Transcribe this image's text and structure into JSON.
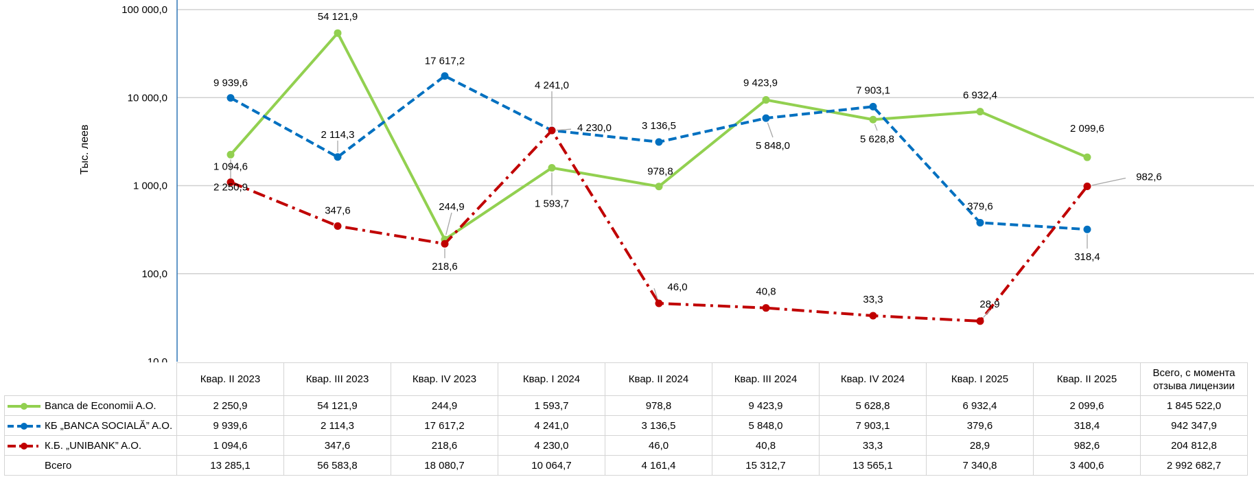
{
  "chart_data": {
    "type": "line",
    "yscale": "log",
    "ylabel": "Тыс. леев",
    "ylim": [
      10,
      100000
    ],
    "yticks": [
      10,
      100,
      1000,
      10000,
      100000
    ],
    "ytick_labels": [
      "10,0",
      "100,0",
      "1 000,0",
      "10 000,0",
      "100 000,0"
    ],
    "categories": [
      "Кварт. II 2023",
      "Кварт. III 2023",
      "Кварт. IV 2023",
      "Кварт. I 2024",
      "Кварт. II 2024",
      "Кварт. III 2024",
      "Кварт. IV 2024",
      "Кварт. I 2025",
      "Кварт. II 2025"
    ],
    "category_labels": [
      "Квар. II 2023",
      "Квар. III 2023",
      "Квар. IV 2023",
      "Квар. I 2024",
      "Квар. II 2024",
      "Квар. III 2024",
      "Квар. IV 2024",
      "Квар. I 2025",
      "Квар. II 2025"
    ],
    "total_column_label": "Всего, с момента отзыва лицензии",
    "grid": true,
    "series": [
      {
        "name": "Banca de Economii A.O.",
        "color": "#92d050",
        "style": "solid",
        "values": [
          2250.9,
          54121.9,
          244.9,
          1593.7,
          978.8,
          9423.9,
          5628.8,
          6932.4,
          2099.6
        ],
        "labels": [
          "2 250,9",
          "54 121,9",
          "244,9",
          "1 593,7",
          "978,8",
          "9 423,9",
          "5 628,8",
          "6 932,4",
          "2 099,6"
        ],
        "total": "1 845 522,0"
      },
      {
        "name": "КБ „BANCA SOCIALĂ” A.O.",
        "color": "#0070c0",
        "style": "dashed",
        "values": [
          9939.6,
          2114.3,
          17617.2,
          4241.0,
          3136.5,
          5848.0,
          7903.1,
          379.6,
          318.4
        ],
        "labels": [
          "9 939,6",
          "2 114,3",
          "17 617,2",
          "4 241,0",
          "3 136,5",
          "5 848,0",
          "7 903,1",
          "379,6",
          "318,4"
        ],
        "total": "942 347,9"
      },
      {
        "name": "К.Б. „UNIBANK” A.O.",
        "color": "#c00000",
        "style": "dashdot",
        "values": [
          1094.6,
          347.6,
          218.6,
          4230.0,
          46.0,
          40.8,
          33.3,
          28.9,
          982.6
        ],
        "labels": [
          "1 094,6",
          "347,6",
          "218,6",
          "4 230,0",
          "46,0",
          "40,8",
          "33,3",
          "28,9",
          "982,6"
        ],
        "total": "204 812,8"
      }
    ],
    "totals_row": {
      "name": "Всего",
      "labels": [
        "13 285,1",
        "56 583,8",
        "18 080,7",
        "10 064,7",
        "4 161,4",
        "15 312,7",
        "13 565,1",
        "7 340,8",
        "3 400,6"
      ],
      "total": "2 992 682,7"
    }
  }
}
